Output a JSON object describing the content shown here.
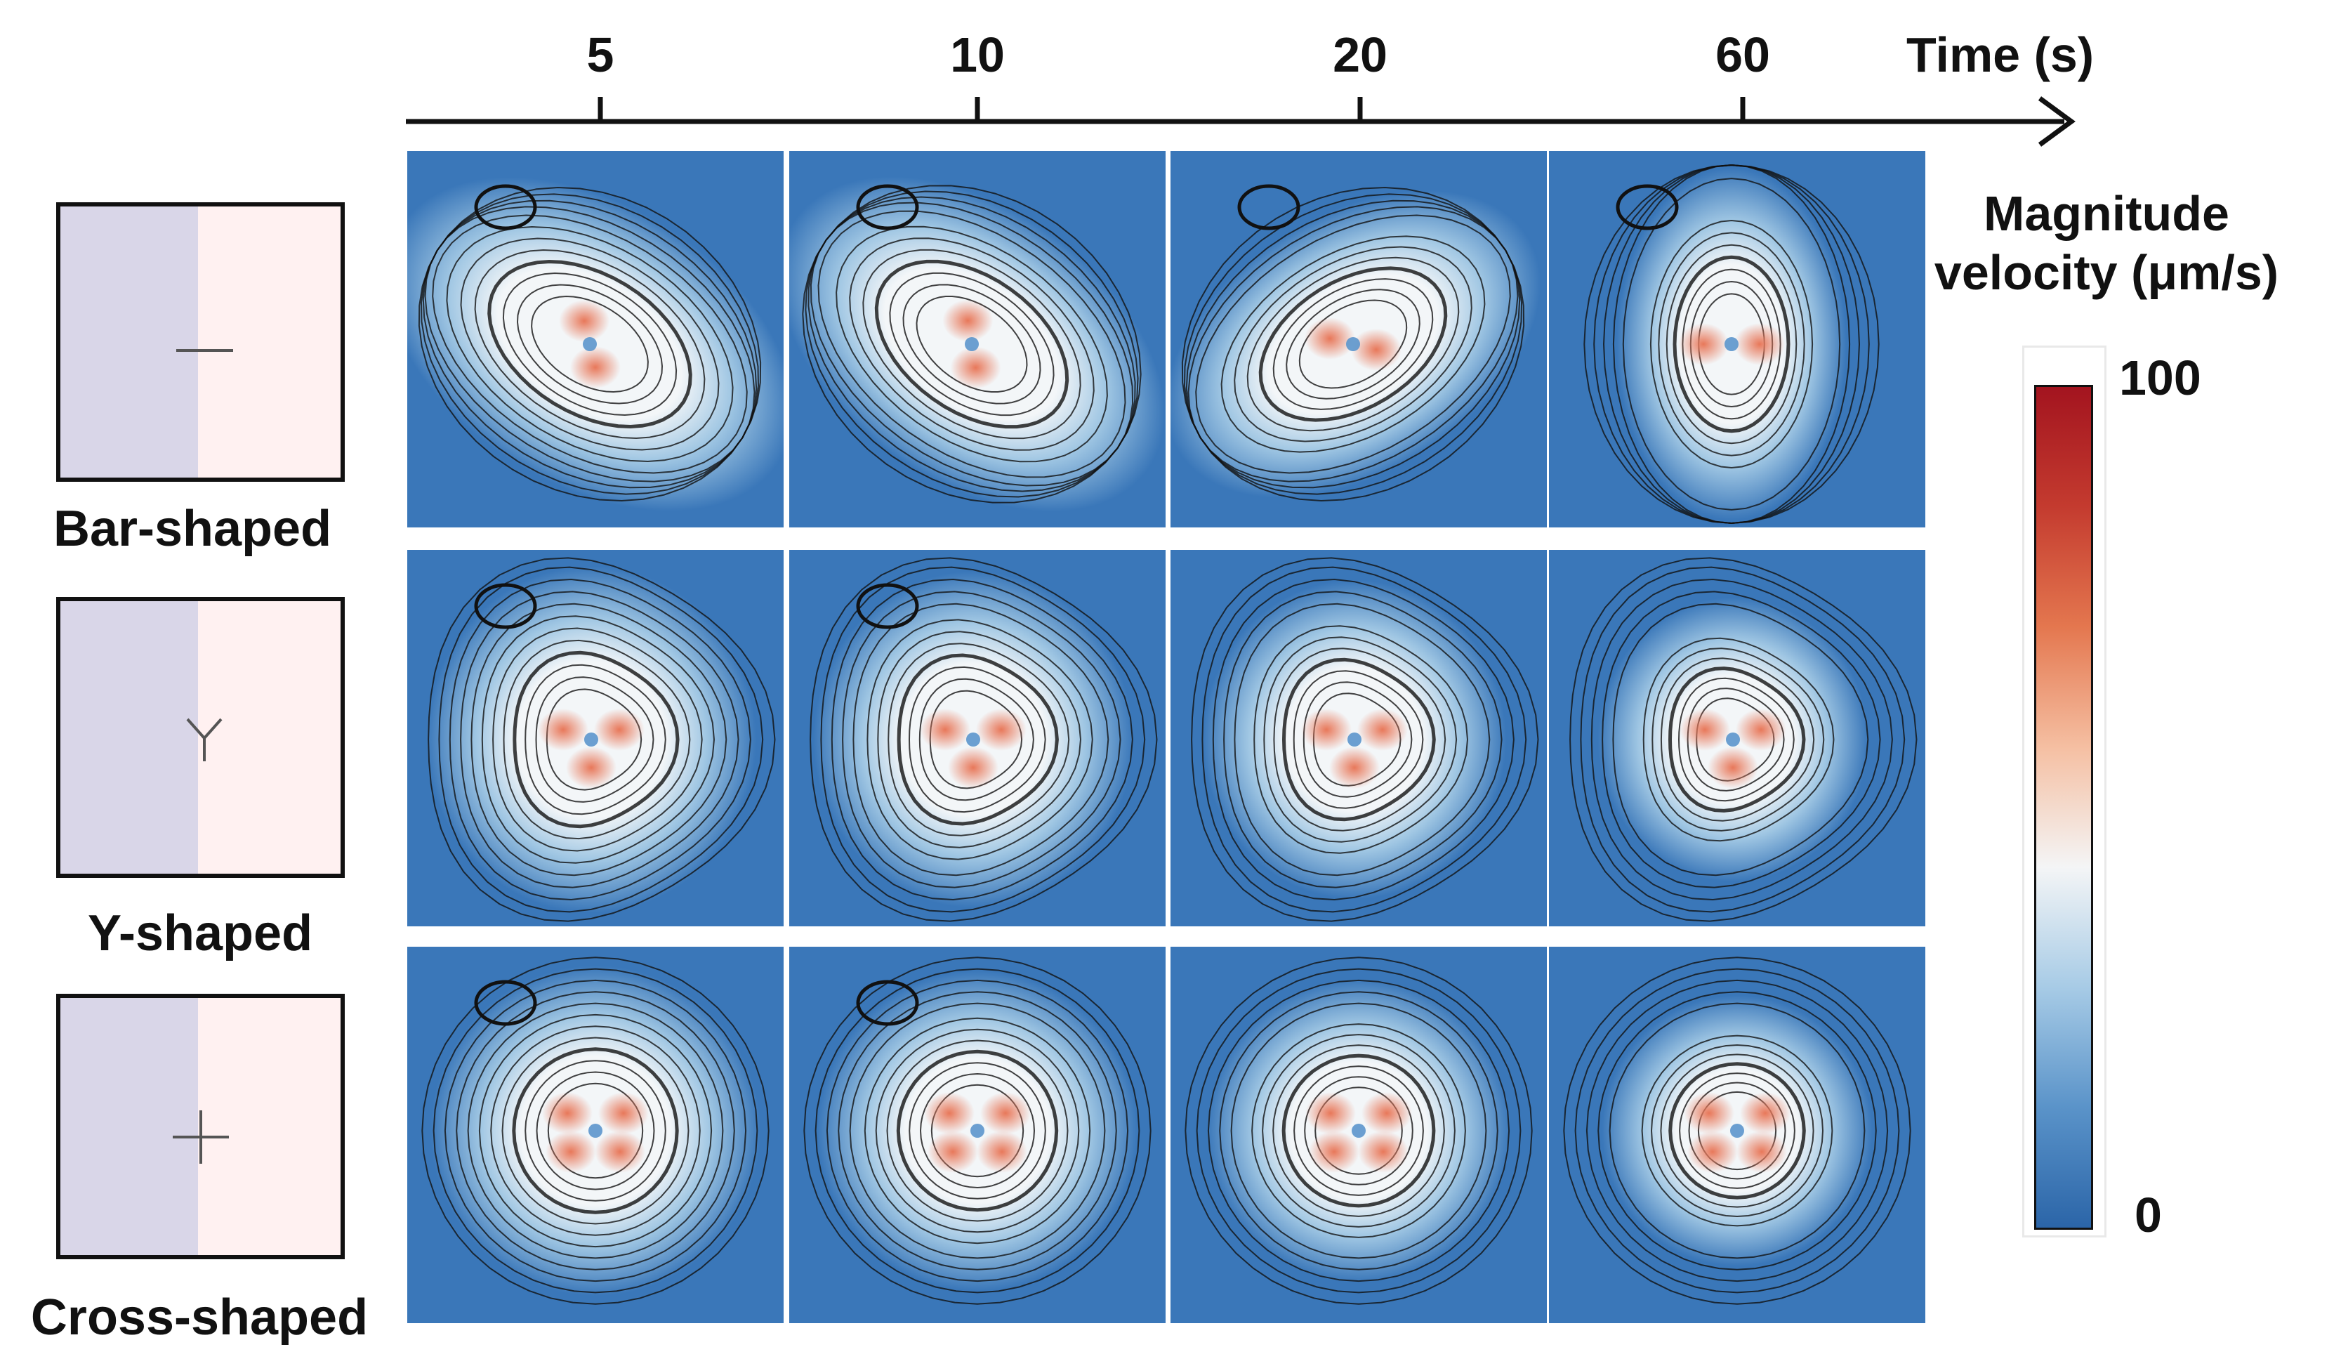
{
  "time_axis": {
    "title": "Time (s)",
    "ticks": [
      "5",
      "10",
      "20",
      "60"
    ]
  },
  "shapes": [
    {
      "label": "Bar-shaped",
      "glyph": "bar"
    },
    {
      "label": "Y-shaped",
      "glyph": "y"
    },
    {
      "label": "Cross-shaped",
      "glyph": "cross"
    }
  ],
  "colorbar": {
    "title_line1": "Magnitude",
    "title_line2": "velocity (μm/s)",
    "max_label": "100",
    "min_label": "0",
    "colors": [
      "#2b65a8",
      "#5a93c9",
      "#a7cbe6",
      "#f4f5f6",
      "#f5bfa2",
      "#e4774f",
      "#c43b2f",
      "#a3141f"
    ]
  },
  "panel_colors": {
    "background": "#3a77b9",
    "mid": "#9fc6e3",
    "core": "#f3f6f8",
    "hot": "#e8785a",
    "streamline": "#111111"
  }
}
